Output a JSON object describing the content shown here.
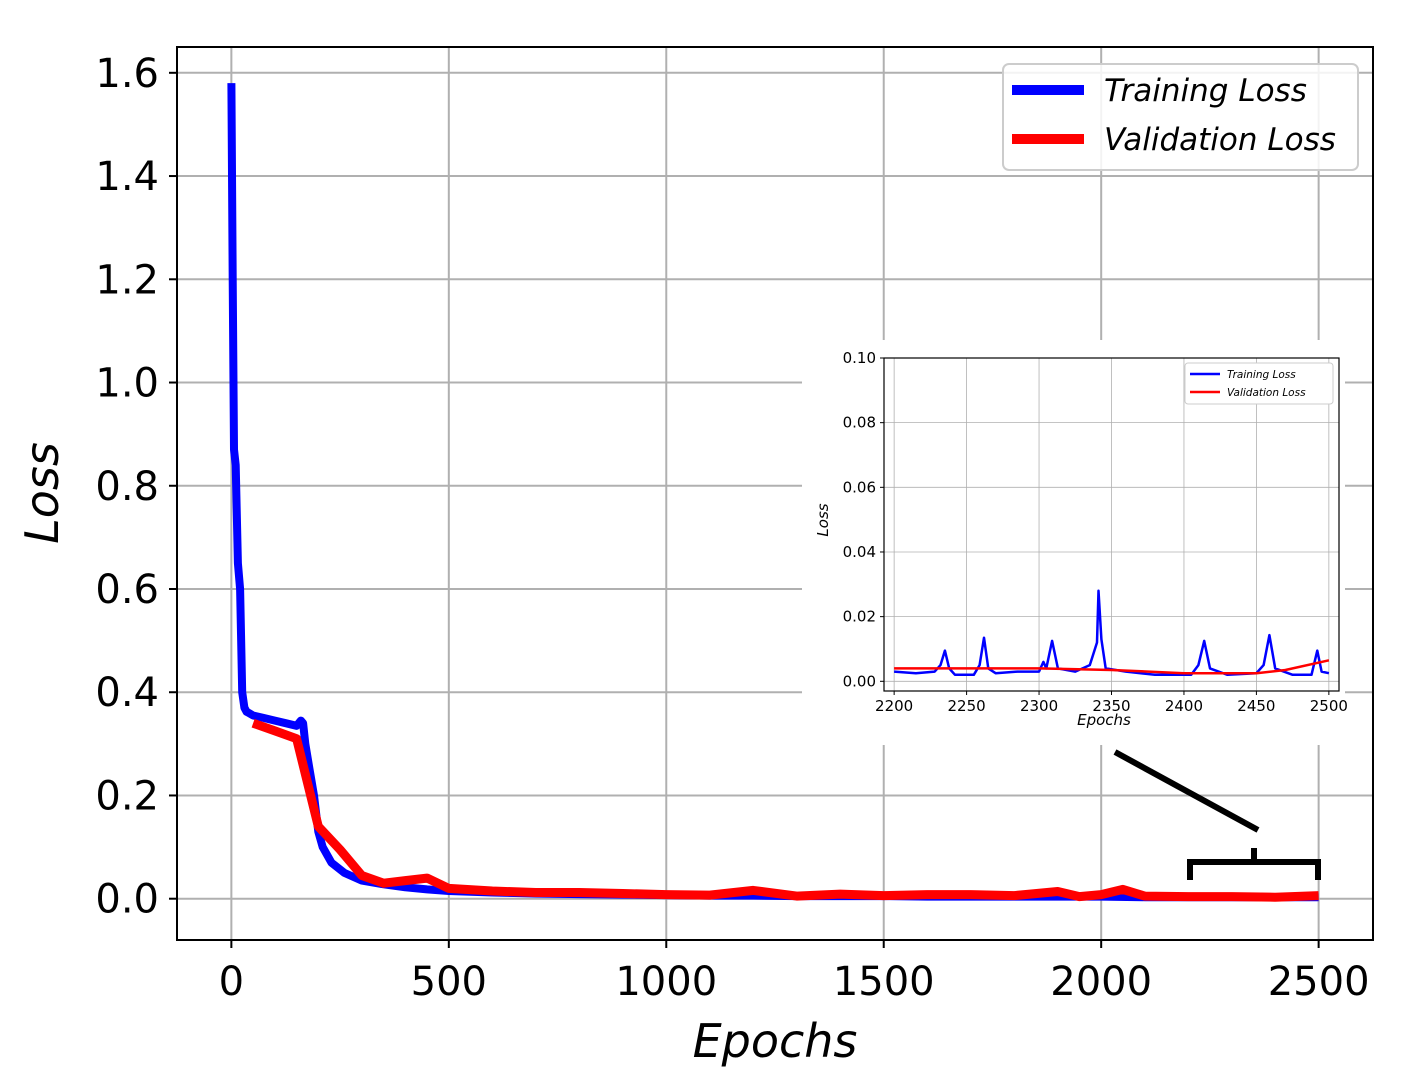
{
  "chart_data": [
    {
      "type": "line",
      "xlabel": "Epochs",
      "ylabel": "Loss",
      "xlim": [
        -125,
        2625
      ],
      "ylim": [
        -0.08,
        1.65
      ],
      "xticks": [
        0,
        500,
        1000,
        1500,
        2000,
        2500
      ],
      "yticks": [
        0.0,
        0.2,
        0.4,
        0.6,
        0.8,
        1.0,
        1.2,
        1.4,
        1.6
      ],
      "xtick_labels": [
        "0",
        "500",
        "1000",
        "1500",
        "2000",
        "2500"
      ],
      "ytick_labels": [
        "0.0",
        "0.2",
        "0.4",
        "0.6",
        "0.8",
        "1.0",
        "1.2",
        "1.4",
        "1.6"
      ],
      "grid": true,
      "legend_position": "top-right",
      "series": [
        {
          "name": "Training Loss",
          "color": "#0000ff",
          "x": [
            0,
            3,
            6,
            10,
            15,
            20,
            25,
            30,
            35,
            40,
            50,
            75,
            100,
            125,
            150,
            160,
            165,
            170,
            180,
            190,
            200,
            210,
            230,
            260,
            300,
            350,
            400,
            450,
            500,
            600,
            700,
            800,
            900,
            1000,
            1100,
            1200,
            1300,
            1400,
            1500,
            1600,
            1700,
            1800,
            1900,
            2000,
            2100,
            2200,
            2300,
            2400,
            2500
          ],
          "y": [
            1.58,
            1.2,
            0.87,
            0.84,
            0.65,
            0.6,
            0.4,
            0.37,
            0.362,
            0.36,
            0.355,
            0.35,
            0.345,
            0.34,
            0.335,
            0.345,
            0.34,
            0.3,
            0.25,
            0.2,
            0.13,
            0.1,
            0.07,
            0.05,
            0.035,
            0.028,
            0.022,
            0.018,
            0.015,
            0.012,
            0.01,
            0.009,
            0.008,
            0.007,
            0.006,
            0.006,
            0.005,
            0.005,
            0.005,
            0.004,
            0.004,
            0.004,
            0.004,
            0.004,
            0.003,
            0.003,
            0.003,
            0.003,
            0.003
          ]
        },
        {
          "name": "Validation Loss",
          "color": "#ff0000",
          "x": [
            50,
            100,
            150,
            200,
            250,
            300,
            350,
            400,
            450,
            500,
            600,
            700,
            800,
            900,
            1000,
            1100,
            1200,
            1300,
            1400,
            1500,
            1600,
            1700,
            1800,
            1900,
            1950,
            2000,
            2050,
            2100,
            2200,
            2300,
            2400,
            2500
          ],
          "y": [
            0.34,
            0.325,
            0.31,
            0.14,
            0.095,
            0.045,
            0.03,
            0.035,
            0.04,
            0.02,
            0.015,
            0.012,
            0.012,
            0.01,
            0.008,
            0.007,
            0.016,
            0.005,
            0.009,
            0.006,
            0.008,
            0.008,
            0.006,
            0.014,
            0.004,
            0.008,
            0.018,
            0.005,
            0.004,
            0.004,
            0.003,
            0.006
          ]
        }
      ]
    },
    {
      "type": "line",
      "xlabel": "Epochs",
      "ylabel": "Loss",
      "xlim": [
        2193,
        2507
      ],
      "ylim": [
        -0.003,
        0.1
      ],
      "xticks": [
        2200,
        2250,
        2300,
        2350,
        2400,
        2450,
        2500
      ],
      "yticks": [
        0.0,
        0.02,
        0.04,
        0.06,
        0.08,
        0.1
      ],
      "xtick_labels": [
        "2200",
        "2250",
        "2300",
        "2350",
        "2400",
        "2450",
        "2500"
      ],
      "ytick_labels": [
        "0.00",
        "0.02",
        "0.04",
        "0.06",
        "0.08",
        "0.10"
      ],
      "grid": true,
      "legend_position": "top-right",
      "series": [
        {
          "name": "Training Loss",
          "color": "#0000ff",
          "x": [
            2200,
            2215,
            2228,
            2232,
            2235,
            2238,
            2242,
            2255,
            2259,
            2262,
            2265,
            2270,
            2285,
            2300,
            2303,
            2305,
            2309,
            2313,
            2325,
            2335,
            2340,
            2341,
            2343,
            2346,
            2360,
            2380,
            2405,
            2410,
            2414,
            2418,
            2430,
            2450,
            2455,
            2459,
            2463,
            2475,
            2488,
            2492,
            2495,
            2500
          ],
          "y": [
            0.003,
            0.0025,
            0.003,
            0.005,
            0.0095,
            0.004,
            0.002,
            0.002,
            0.005,
            0.0135,
            0.004,
            0.0025,
            0.003,
            0.003,
            0.006,
            0.004,
            0.0125,
            0.004,
            0.003,
            0.005,
            0.012,
            0.028,
            0.013,
            0.004,
            0.003,
            0.002,
            0.002,
            0.005,
            0.0125,
            0.004,
            0.002,
            0.0025,
            0.005,
            0.0143,
            0.004,
            0.002,
            0.002,
            0.0095,
            0.003,
            0.0025
          ]
        },
        {
          "name": "Validation Loss",
          "color": "#ff0000",
          "x": [
            2200,
            2250,
            2300,
            2350,
            2400,
            2450,
            2470,
            2500
          ],
          "y": [
            0.004,
            0.004,
            0.004,
            0.0035,
            0.0025,
            0.0025,
            0.0035,
            0.0065
          ]
        }
      ]
    }
  ]
}
